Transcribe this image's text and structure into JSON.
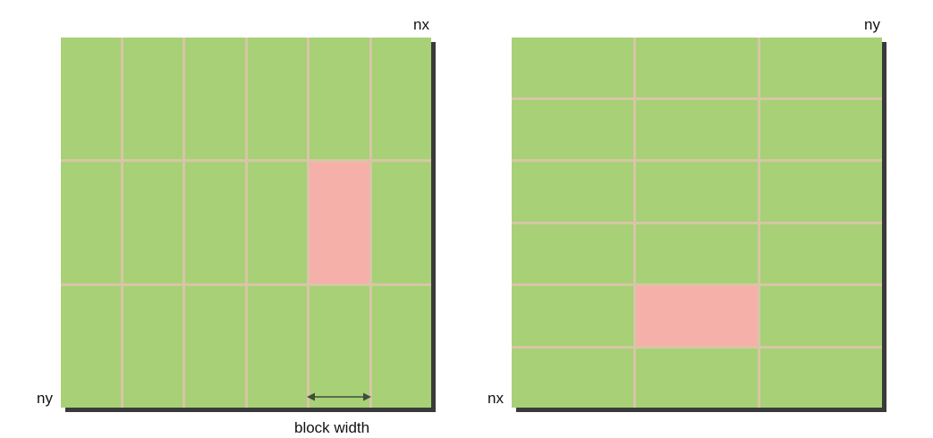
{
  "left_diagram": {
    "top_right_label": "nx",
    "bottom_left_label": "ny",
    "columns": 6,
    "rows": 3,
    "highlight_cell": {
      "row": 1,
      "col": 4
    },
    "annotation": "block width"
  },
  "right_diagram": {
    "top_right_label": "ny",
    "bottom_left_label": "nx",
    "columns": 3,
    "rows": 6,
    "highlight_cell": {
      "row": 4,
      "col": 1
    }
  },
  "colors": {
    "block": "#a8d077",
    "highlight": "#f6b0aa",
    "grid_line": "#d7c6a6",
    "shadow": "#3a3a3a",
    "arrow": "#3d4f3a"
  }
}
